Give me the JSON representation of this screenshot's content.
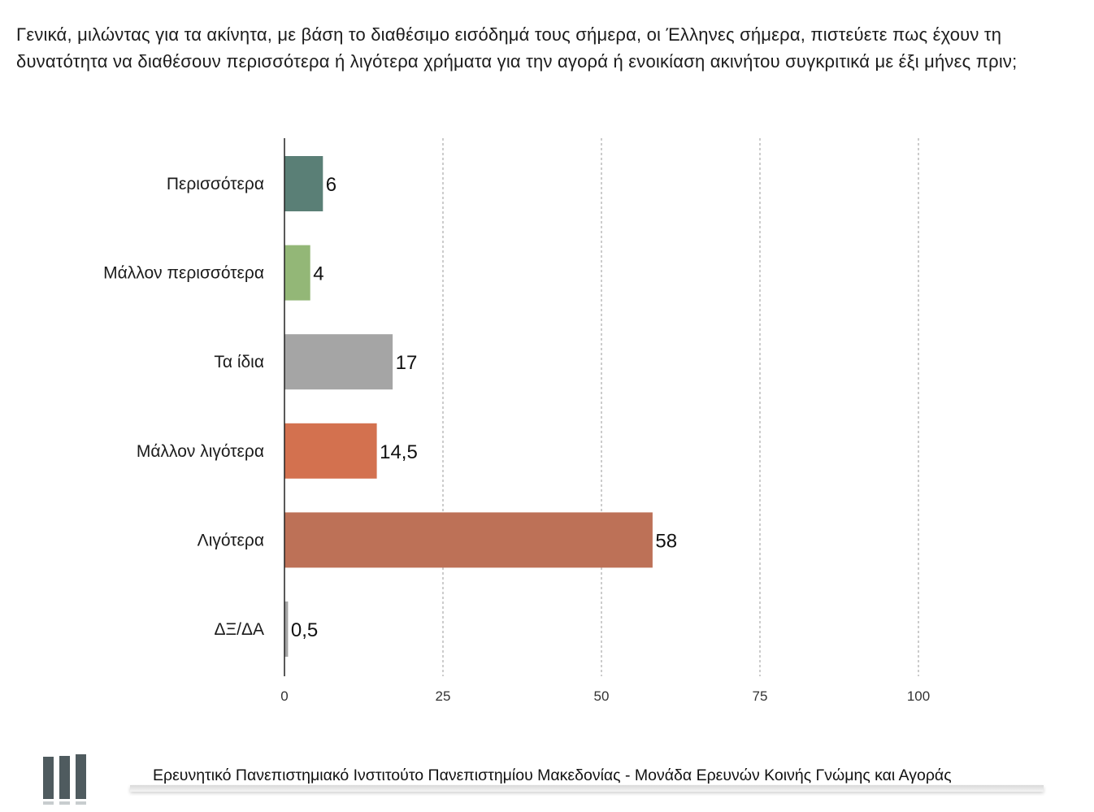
{
  "question": "Γενικά, μιλώντας για τα ακίνητα, με βάση το διαθέσιμο εισόδημά τους σήμερα, οι Έλληνες σήμερα, πιστεύετε πως έχουν τη δυνατότητα να διαθέσουν περισσότερα ή λιγότερα χρήματα για την αγορά ή ενοικίαση ακινήτου συγκριτικά με έξι μήνες πριν;",
  "chart_data": {
    "type": "bar",
    "orientation": "horizontal",
    "categories": [
      "Περισσότερα",
      "Μάλλον περισσότερα",
      "Τα ίδια",
      "Μάλλον λιγότερα",
      "Λιγότερα",
      "ΔΞ/ΔΑ"
    ],
    "values": [
      6,
      4,
      17,
      14.5,
      58,
      0.5
    ],
    "value_labels": [
      "6",
      "4",
      "17",
      "14,5",
      "58",
      "0,5"
    ],
    "colors": [
      "#5a7f76",
      "#93b777",
      "#a5a5a5",
      "#d3714f",
      "#bd7157",
      "#a5a5a5"
    ],
    "xlim": [
      0,
      100
    ],
    "xticks": [
      0,
      25,
      50,
      75,
      100
    ],
    "xtick_labels": [
      "0",
      "25",
      "50",
      "75",
      "100"
    ],
    "grid": "vertical dashed"
  },
  "footer": {
    "text": "Ερευνητικό Πανεπιστημιακό Ινστιτούτο Πανεπιστημίου Μακεδονίας - Μονάδα Ερευνών Κοινής Γνώμης και Αγοράς",
    "logo_color": "#4f5b5f"
  }
}
